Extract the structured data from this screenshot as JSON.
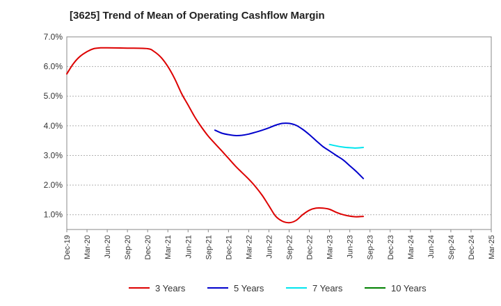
{
  "title": "[3625]  Trend of Mean of Operating Cashflow Margin",
  "chart_data": {
    "type": "line",
    "title": "[3625]  Trend of Mean of Operating Cashflow Margin",
    "xlabel": "",
    "ylabel": "",
    "ylim": [
      0.5,
      7.0
    ],
    "y_ticks": [
      "1.0%",
      "2.0%",
      "3.0%",
      "4.0%",
      "5.0%",
      "6.0%",
      "7.0%"
    ],
    "y_tick_values": [
      1,
      2,
      3,
      4,
      5,
      6,
      7
    ],
    "categories": [
      "Dec-19",
      "Mar-20",
      "Jun-20",
      "Sep-20",
      "Dec-20",
      "Mar-21",
      "Jun-21",
      "Sep-21",
      "Dec-21",
      "Mar-22",
      "Jun-22",
      "Sep-22",
      "Dec-22",
      "Mar-23",
      "Jun-23",
      "Sep-23",
      "Dec-23",
      "Mar-24",
      "Jun-24",
      "Sep-24",
      "Dec-24",
      "Mar-25"
    ],
    "grid": "horizontal dashed",
    "legend_position": "bottom",
    "series": [
      {
        "name": "3 Years",
        "color": "#dd0000",
        "points": [
          [
            0,
            5.75
          ],
          [
            0.33,
            6.1
          ],
          [
            0.67,
            6.35
          ],
          [
            1,
            6.5
          ],
          [
            1.33,
            6.6
          ],
          [
            1.67,
            6.63
          ],
          [
            2,
            6.63
          ],
          [
            3,
            6.62
          ],
          [
            4,
            6.6
          ],
          [
            4.33,
            6.5
          ],
          [
            4.67,
            6.3
          ],
          [
            5,
            6.0
          ],
          [
            5.33,
            5.6
          ],
          [
            5.67,
            5.1
          ],
          [
            6,
            4.7
          ],
          [
            6.33,
            4.3
          ],
          [
            6.67,
            3.95
          ],
          [
            7,
            3.65
          ],
          [
            7.33,
            3.4
          ],
          [
            7.67,
            3.15
          ],
          [
            8,
            2.9
          ],
          [
            8.33,
            2.65
          ],
          [
            8.67,
            2.42
          ],
          [
            9,
            2.2
          ],
          [
            9.33,
            1.95
          ],
          [
            9.67,
            1.65
          ],
          [
            10,
            1.3
          ],
          [
            10.33,
            0.95
          ],
          [
            10.67,
            0.78
          ],
          [
            11,
            0.73
          ],
          [
            11.33,
            0.8
          ],
          [
            11.67,
            1.0
          ],
          [
            12,
            1.15
          ],
          [
            12.33,
            1.22
          ],
          [
            12.67,
            1.22
          ],
          [
            13,
            1.18
          ],
          [
            13.33,
            1.08
          ],
          [
            13.67,
            1.0
          ],
          [
            14,
            0.95
          ],
          [
            14.33,
            0.93
          ],
          [
            14.67,
            0.94
          ]
        ]
      },
      {
        "name": "5 Years",
        "color": "#0000cc",
        "points": [
          [
            7.33,
            3.85
          ],
          [
            7.67,
            3.75
          ],
          [
            8,
            3.7
          ],
          [
            8.33,
            3.67
          ],
          [
            8.67,
            3.68
          ],
          [
            9,
            3.72
          ],
          [
            9.33,
            3.78
          ],
          [
            9.67,
            3.85
          ],
          [
            10,
            3.93
          ],
          [
            10.33,
            4.02
          ],
          [
            10.67,
            4.08
          ],
          [
            11,
            4.08
          ],
          [
            11.33,
            4.02
          ],
          [
            11.67,
            3.88
          ],
          [
            12,
            3.7
          ],
          [
            12.33,
            3.5
          ],
          [
            12.67,
            3.3
          ],
          [
            13,
            3.15
          ],
          [
            13.33,
            3.0
          ],
          [
            13.67,
            2.85
          ],
          [
            14,
            2.65
          ],
          [
            14.33,
            2.45
          ],
          [
            14.67,
            2.22
          ]
        ]
      },
      {
        "name": "7 Years",
        "color": "#00e5ee",
        "points": [
          [
            13,
            3.37
          ],
          [
            13.33,
            3.32
          ],
          [
            13.67,
            3.28
          ],
          [
            14,
            3.26
          ],
          [
            14.33,
            3.25
          ],
          [
            14.67,
            3.27
          ]
        ]
      },
      {
        "name": "10 Years",
        "color": "#008000",
        "points": []
      }
    ]
  }
}
